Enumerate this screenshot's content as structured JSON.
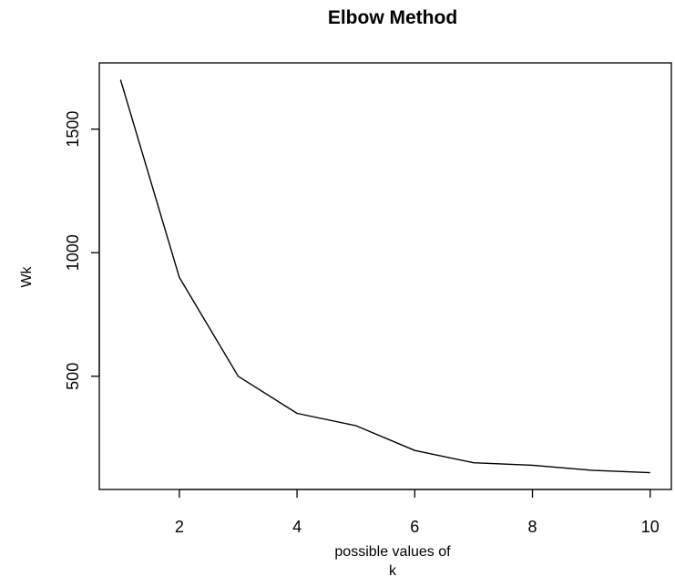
{
  "chart_data": {
    "type": "line",
    "title": "Elbow Method",
    "xlabel": "possible values of\nk",
    "ylabel": "Wk",
    "x": [
      1,
      2,
      3,
      4,
      5,
      6,
      7,
      8,
      9,
      10
    ],
    "series": [
      {
        "values": [
          1700,
          900,
          500,
          350,
          300,
          200,
          150,
          140,
          120,
          110
        ]
      }
    ],
    "xticks": [
      2,
      4,
      6,
      8,
      10
    ],
    "yticks": [
      500,
      1000,
      1500
    ],
    "xlim": [
      0.64,
      10.36
    ],
    "ylim": [
      42,
      1768
    ],
    "grid": false,
    "legend": "none",
    "line_color": "#000000",
    "axis_color": "#000000"
  }
}
